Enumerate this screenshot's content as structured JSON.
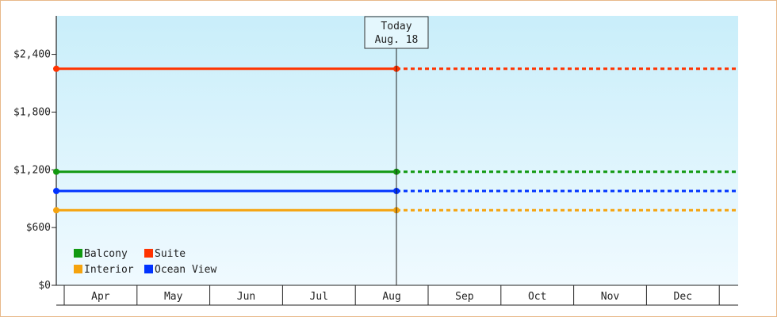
{
  "chart_data": {
    "type": "line",
    "categories": [
      "Apr",
      "May",
      "Jun",
      "Jul",
      "Aug",
      "Sep",
      "Oct",
      "Nov",
      "Dec"
    ],
    "ylim": [
      0,
      2800
    ],
    "yticks": [
      {
        "value": 0,
        "label": "$0"
      },
      {
        "value": 600,
        "label": "$600"
      },
      {
        "value": 1200,
        "label": "$1,200"
      },
      {
        "value": 1800,
        "label": "$1,800"
      },
      {
        "value": 2400,
        "label": "$2,400"
      }
    ],
    "today": {
      "label": "Today",
      "date": "Aug. 18"
    },
    "series": [
      {
        "name": "Suite",
        "color": "#ff3300",
        "value": 2250
      },
      {
        "name": "Balcony",
        "color": "#119911",
        "value": 1180
      },
      {
        "name": "Ocean View",
        "color": "#0033ff",
        "value": 980
      },
      {
        "name": "Interior",
        "color": "#f5a30e",
        "value": 780
      }
    ],
    "legend": [
      {
        "name": "Balcony",
        "color": "#119911"
      },
      {
        "name": "Suite",
        "color": "#ff3300"
      },
      {
        "name": "Interior",
        "color": "#f5a30e"
      },
      {
        "name": "Ocean View",
        "color": "#0033ff"
      }
    ]
  }
}
